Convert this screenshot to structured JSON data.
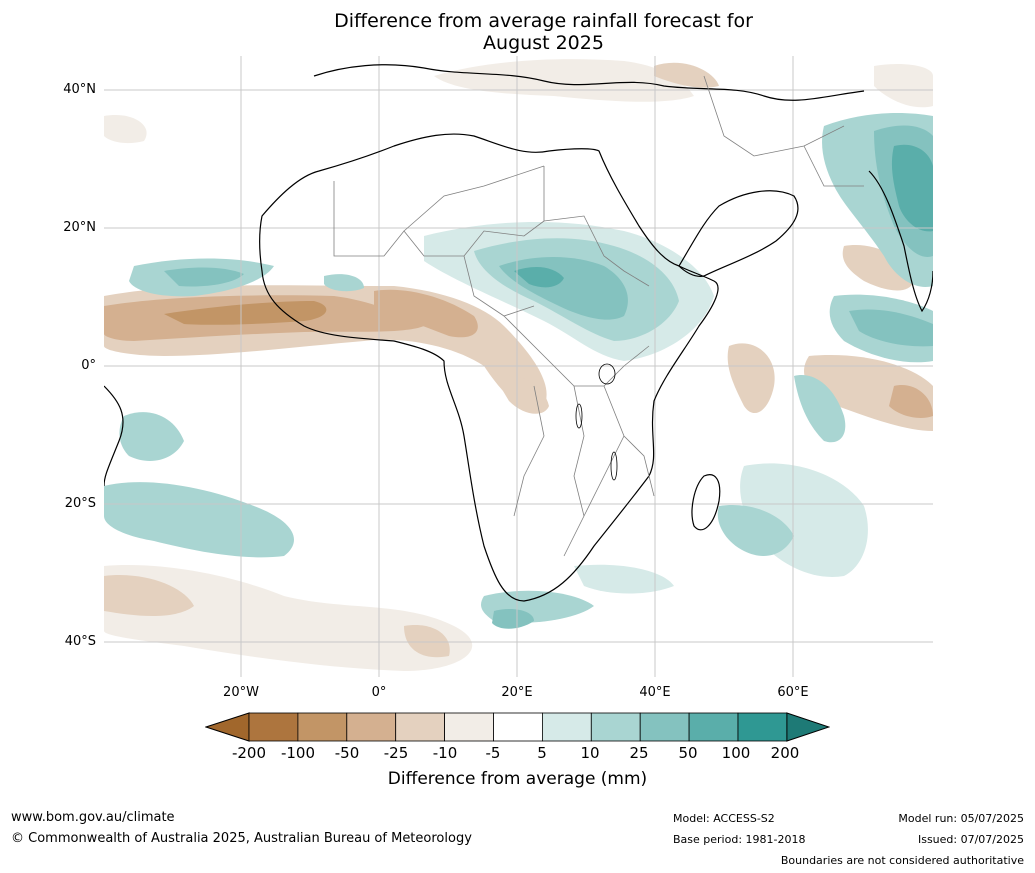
{
  "title_line1": "Difference from average rainfall forecast for",
  "title_line2": "August 2025",
  "lat_labels": [
    "40°N",
    "20°N",
    "0°",
    "20°S",
    "40°S"
  ],
  "lon_labels": [
    "20°W",
    "0°",
    "20°E",
    "40°E",
    "60°E"
  ],
  "colorbar": {
    "ticks": [
      "-200",
      "-100",
      "-50",
      "-25",
      "-10",
      "-5",
      "5",
      "10",
      "25",
      "50",
      "100",
      "200"
    ],
    "colors": [
      "#a1672c",
      "#ad753e",
      "#c29566",
      "#d4b090",
      "#e4d1bf",
      "#f2ede7",
      "#ffffff",
      "#d6eae8",
      "#a9d5d2",
      "#84c2bf",
      "#5aaeaa",
      "#2f9893",
      "#1e7a76"
    ],
    "label": "Difference from average (mm)"
  },
  "footer": {
    "website": "www.bom.gov.au/climate",
    "copyright": "© Commonwealth of Australia 2025, Australian Bureau of Meteorology",
    "model": "Model: ACCESS-S2",
    "base_period": "Base period: 1981-2018",
    "model_run": "Model run: 05/07/2025",
    "issued": "Issued: 07/07/2025",
    "boundaries": "Boundaries are not considered authoritative"
  }
}
